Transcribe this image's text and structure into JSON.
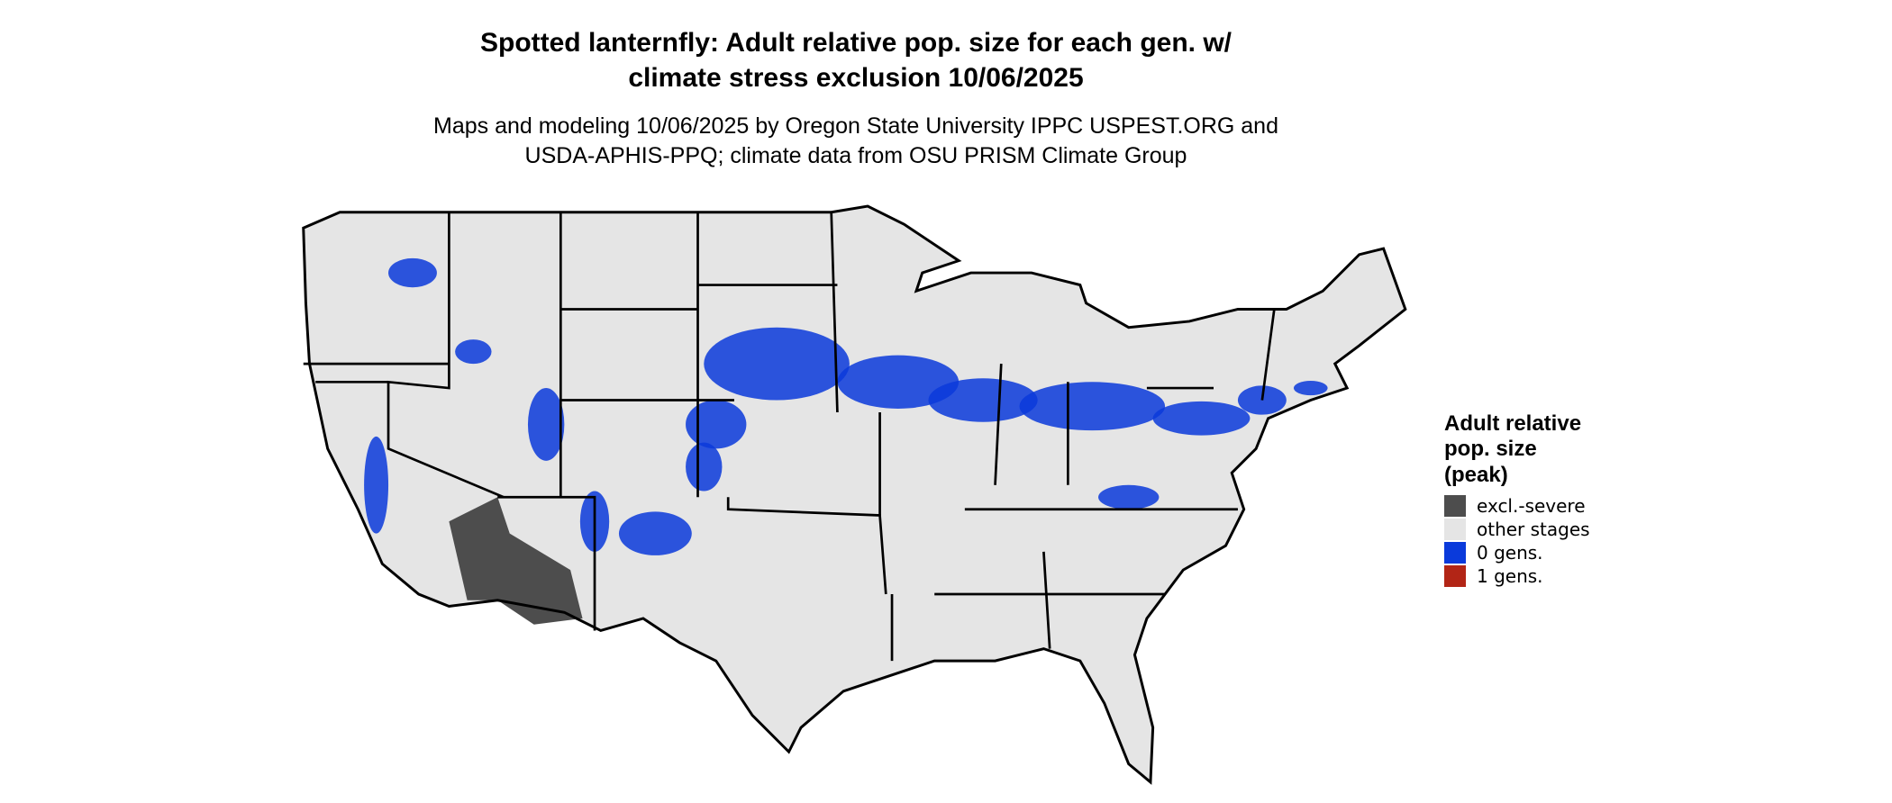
{
  "title": [
    "Spotted lanternfly: Adult relative pop. size for each gen. w/",
    "climate stress exclusion 10/06/2025"
  ],
  "subtitle": [
    "Maps and modeling 10/06/2025 by Oregon State University IPPC USPEST.ORG and",
    "USDA-APHIS-PPQ; climate data from OSU PRISM Climate Group"
  ],
  "legend": {
    "title": [
      "Adult relative",
      "pop. size",
      "(peak)"
    ],
    "items": [
      {
        "label": "excl.-severe",
        "color": "#4d4d4d"
      },
      {
        "label": "other stages",
        "color": "#e5e5e5"
      },
      {
        "label": "0 gens.",
        "color": "#0a3adb"
      },
      {
        "label": "1 gens.",
        "color": "#b22516"
      }
    ]
  }
}
